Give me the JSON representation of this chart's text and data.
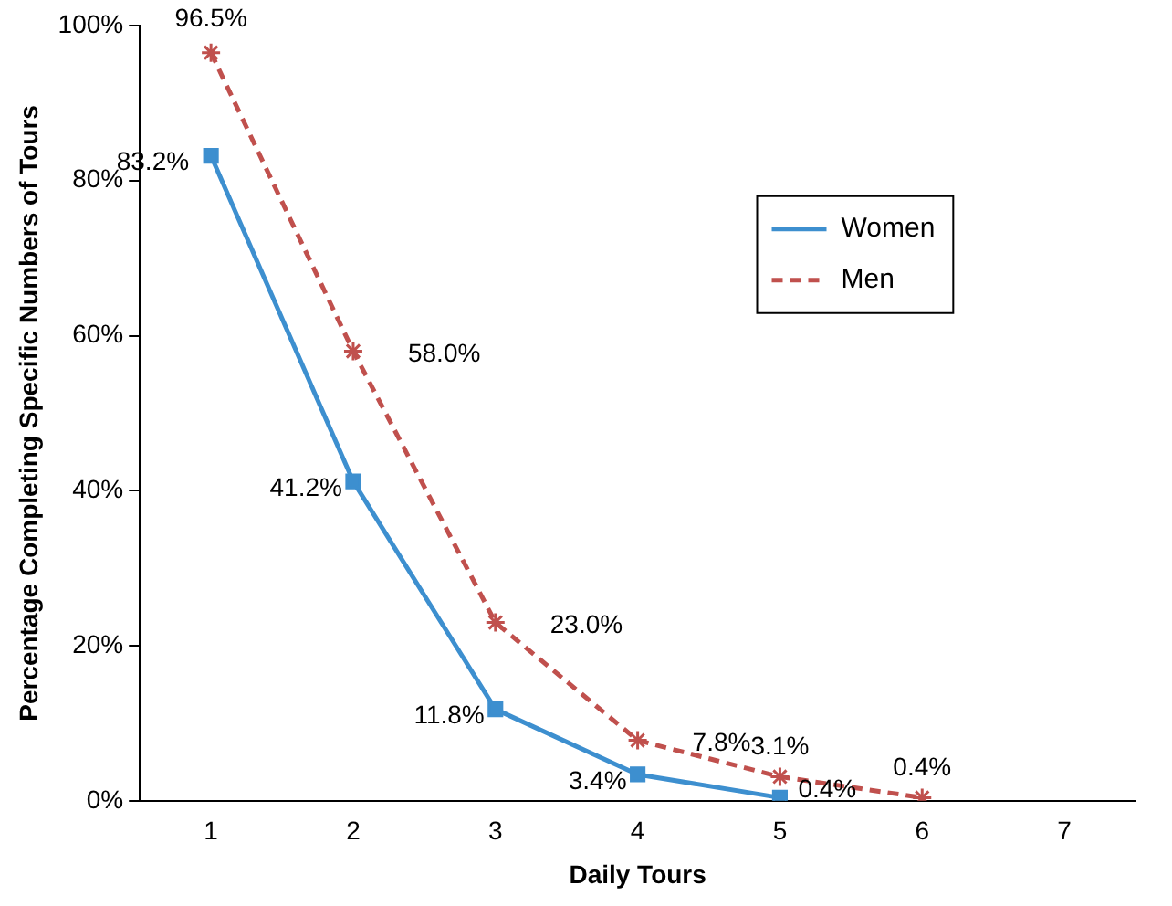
{
  "chart_data": {
    "type": "line",
    "xlabel": "Daily Tours",
    "ylabel": "Percentage Completing Specific Numbers of Tours",
    "categories": [
      "1",
      "2",
      "3",
      "4",
      "5",
      "6",
      "7"
    ],
    "series": [
      {
        "name": "Women",
        "color": "#3d8fcf",
        "marker": "square",
        "line_style": "solid",
        "values": [
          83.2,
          41.2,
          11.8,
          3.4,
          0.4,
          null,
          null
        ],
        "value_labels": [
          "83.2%",
          "41.2%",
          "11.8%",
          "3.4%",
          "0.4%",
          null,
          null
        ]
      },
      {
        "name": "Men",
        "color": "#c0504d",
        "marker": "cross",
        "line_style": "dashed",
        "values": [
          96.5,
          58.0,
          23.0,
          7.8,
          3.1,
          0.4,
          null
        ],
        "value_labels": [
          "96.5%",
          "58.0%",
          "23.0%",
          "7.8%",
          "3.1%",
          "0.4%",
          null
        ]
      }
    ],
    "ylim": [
      0,
      100
    ],
    "yticks": [
      {
        "value": 0,
        "label": "0%"
      },
      {
        "value": 20,
        "label": "20%"
      },
      {
        "value": 40,
        "label": "40%"
      },
      {
        "value": 60,
        "label": "60%"
      },
      {
        "value": 80,
        "label": "80%"
      },
      {
        "value": 100,
        "label": "100%"
      }
    ],
    "grid": false,
    "legend": "top right"
  }
}
